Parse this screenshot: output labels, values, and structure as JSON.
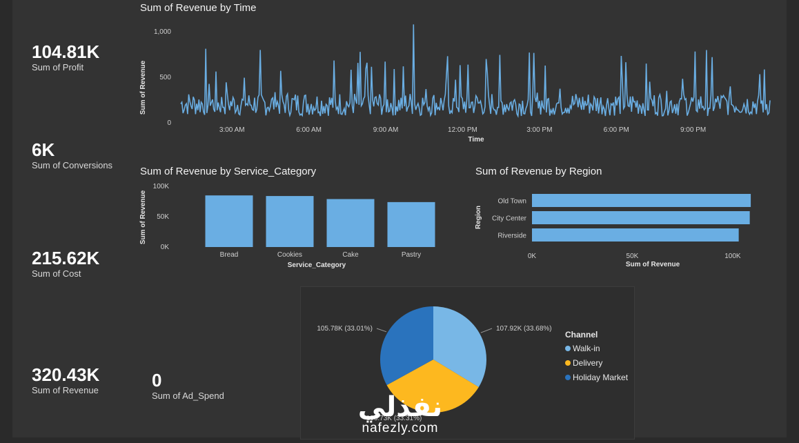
{
  "kpis": {
    "profit": {
      "value": "104.81K",
      "label": "Sum of Profit"
    },
    "conversions": {
      "value": "6K",
      "label": "Sum of Conversions"
    },
    "cost": {
      "value": "215.62K",
      "label": "Sum of Cost"
    },
    "revenue": {
      "value": "320.43K",
      "label": "Sum of Revenue"
    },
    "ad_spend": {
      "value": "0",
      "label": "Sum of Ad_Spend"
    }
  },
  "watermark": {
    "arabic": "نفذلي",
    "latin": "nafezly.com"
  },
  "colors": {
    "series": "#6aaee3",
    "walk_in": "#78b7e6",
    "delivery": "#fdb81f",
    "holiday_market": "#2a73bd"
  },
  "chart_data": [
    {
      "type": "line",
      "title": "Sum of Revenue by Time",
      "xlabel": "Time",
      "ylabel": "Sum of Revenue",
      "ylim": [
        0,
        1000
      ],
      "yticks": [
        "0",
        "500",
        "1,000"
      ],
      "xticks": [
        "3:00 AM",
        "6:00 AM",
        "9:00 AM",
        "12:00 PM",
        "3:00 PM",
        "6:00 PM",
        "9:00 PM"
      ],
      "x_range_hours": [
        1,
        24
      ],
      "y_range_observed": [
        0,
        1080
      ],
      "y_typical_mean": 300
    },
    {
      "type": "bar",
      "title": "Sum of Revenue by Service_Category",
      "xlabel": "Service_Category",
      "ylabel": "Sum of Revenue",
      "categories": [
        "Bread",
        "Cookies",
        "Cake",
        "Pastry"
      ],
      "values": [
        85000,
        84000,
        79000,
        74000
      ],
      "ylim": [
        0,
        100000
      ],
      "yticks": [
        "0K",
        "50K",
        "100K"
      ]
    },
    {
      "type": "bar",
      "orientation": "horizontal",
      "title": "Sum of Revenue by Region",
      "xlabel": "Sum of Revenue",
      "ylabel": "Region",
      "categories": [
        "Old Town",
        "City Center",
        "Riverside"
      ],
      "values": [
        109000,
        108500,
        103000
      ],
      "xlim": [
        0,
        110000
      ],
      "xticks": [
        "0K",
        "50K",
        "100K"
      ]
    },
    {
      "type": "pie",
      "legend_title": "Channel",
      "legend_position": "right",
      "categories": [
        "Walk-in",
        "Delivery",
        "Holiday Market"
      ],
      "values": [
        107920,
        106730,
        105780
      ],
      "labels": [
        "107.92K (33.68%)",
        "106.73K (33.31%)",
        "105.78K (33.01%)"
      ]
    }
  ]
}
